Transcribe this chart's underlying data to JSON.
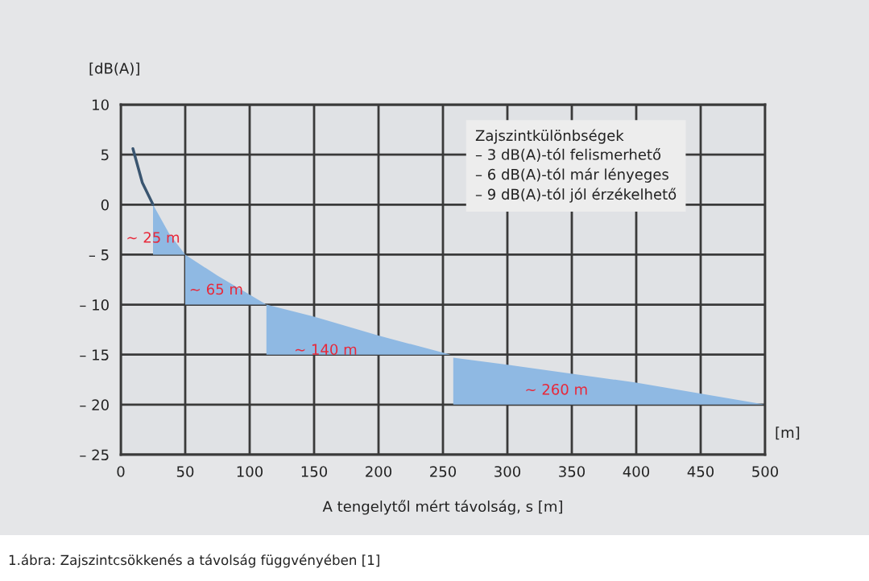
{
  "chart_data": {
    "type": "line",
    "ylabel": "[dB(A)]",
    "xlabel": "A tengelytől mért távolság, s [m]",
    "annotations": [
      "~ 25 m",
      "~ 65 m",
      "~ 140 m",
      "~ 260 m",
      "Zajszintkülönbségek\n– 3 dB(A)-tól felismerhető\n– 6 dB(A)-tól már lényeges\n– 9 dB(A)-tól jól érzékelhető",
      "[m]",
      "1.ábra: Zajszintcsökkenés a távolság függvényében [1]"
    ],
    "series": [
      {
        "color": "#3a5570",
        "x": [
          9.4,
          16.7,
          25
        ],
        "values": [
          5.6,
          2.2,
          0
        ]
      },
      {
        "type": "area",
        "color": "#8fb9e3",
        "x": [
          25,
          25,
          37.5,
          50
        ],
        "values": [
          -5,
          0,
          -2.9,
          -5
        ]
      },
      {
        "type": "area",
        "color": "#8fb9e3",
        "x": [
          50,
          50,
          75,
          113
        ],
        "values": [
          -10,
          -5,
          -7.1,
          -10
        ]
      },
      {
        "type": "area",
        "color": "#8fb9e3",
        "x": [
          113,
          113,
          150,
          200,
          256
        ],
        "values": [
          -15,
          -10,
          -11.2,
          -13.1,
          -15
        ]
      },
      {
        "type": "area",
        "color": "#8fb9e3",
        "x": [
          258,
          258,
          300,
          400,
          500
        ],
        "values": [
          -20,
          -15.3,
          -16.0,
          -17.8,
          -20
        ]
      }
    ],
    "xlim": [
      0,
      500
    ],
    "xticks": [
      0,
      50,
      100,
      150,
      200,
      250,
      300,
      350,
      400,
      450,
      500
    ],
    "ylim": [
      -25,
      10
    ],
    "yticks": [
      {
        "value": -25,
        "label": "– 25"
      },
      {
        "value": -20,
        "label": "– 20"
      },
      {
        "value": -15,
        "label": "– 15"
      },
      {
        "value": -10,
        "label": "– 10"
      },
      {
        "value": -5,
        "label": "– 5"
      },
      0,
      5,
      10
    ],
    "grid": true
  }
}
